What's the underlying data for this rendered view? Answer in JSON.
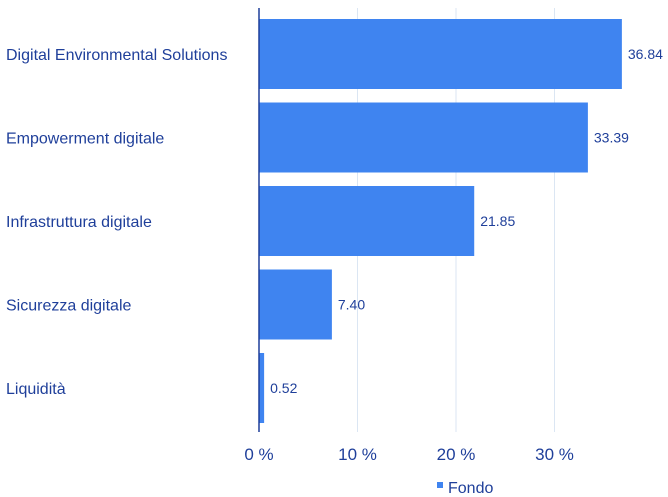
{
  "chart_data": {
    "type": "bar",
    "orientation": "horizontal",
    "categories": [
      "Digital Environmental Solutions",
      "Empowerment digitale",
      "Infrastruttura digitale",
      "Sicurezza digitale",
      "Liquidità"
    ],
    "series": [
      {
        "name": "Fondo",
        "values": [
          36.84,
          33.39,
          21.85,
          7.4,
          0.52
        ],
        "value_labels": [
          "36.84",
          "33.39",
          "21.85",
          "7.40",
          "0.52"
        ],
        "color": "#3f84f0"
      }
    ],
    "xticks": [
      0,
      10,
      20,
      30
    ],
    "xtick_labels": [
      "0 %",
      "10 %",
      "20 %",
      "30 %"
    ],
    "xlim": [
      0,
      40
    ],
    "grid": "vertical",
    "legend_position": "bottom",
    "colors": {
      "bar": "#3f84f0",
      "text": "#1f3f9a",
      "axis": "#1f3f9a",
      "grid": "#dbe6f3"
    }
  }
}
